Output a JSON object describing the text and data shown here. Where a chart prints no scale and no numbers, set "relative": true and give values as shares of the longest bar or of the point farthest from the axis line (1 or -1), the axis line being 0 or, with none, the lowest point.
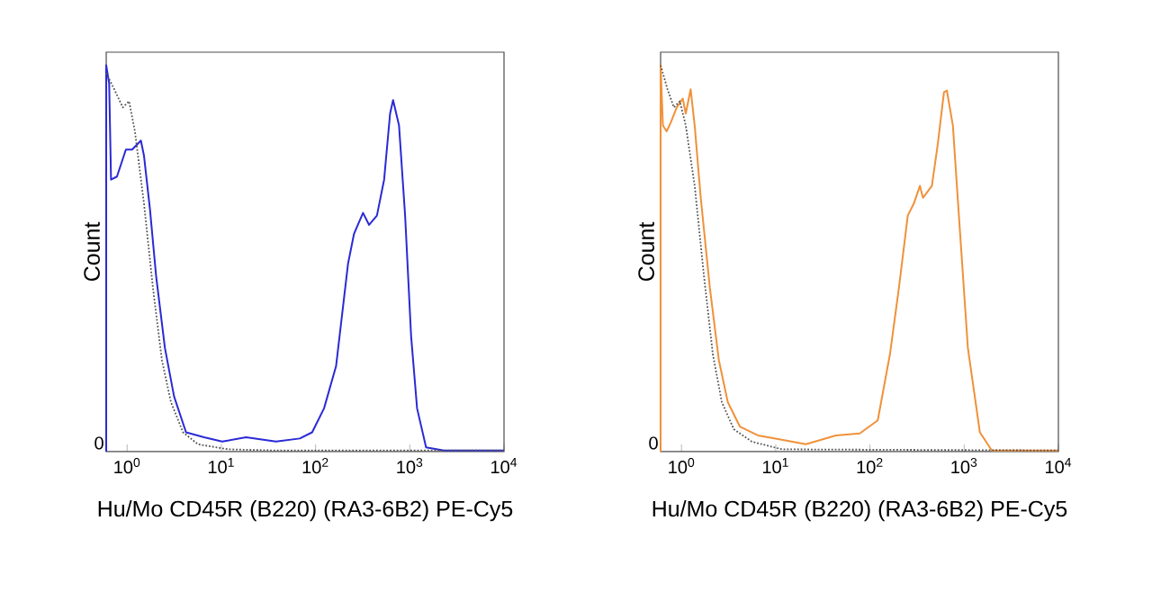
{
  "chart_data": [
    {
      "type": "line",
      "relative": true,
      "log": "x",
      "marker": "none",
      "ylabel": "Count",
      "xlabel": "Hu/Mo CD45R (B220) (RA3-6B2) PE-Cy5",
      "xlim": [
        0.6,
        10000
      ],
      "xticks": [
        {
          "value": 1,
          "label": "10$^{0}$"
        },
        {
          "value": 10,
          "label": "10$^{1}$"
        },
        {
          "value": 100,
          "label": "10$^{2}$"
        },
        {
          "value": 1000,
          "label": "10$^{3}$"
        },
        {
          "value": 10000,
          "label": "10$^{4}$"
        }
      ],
      "annotations": [
        {
          "text": "0",
          "y": 0
        }
      ],
      "series": [
        {
          "color": "#2a2ad6",
          "line_style": "solid",
          "x": [
            0.6,
            0.6,
            0.645,
            0.675,
            0.78,
            0.97,
            1.13,
            1.4,
            1.51,
            1.75,
            2.03,
            2.52,
            3.15,
            4.22,
            6.55,
            10.2,
            18.3,
            38,
            68,
            92,
            123,
            165,
            221,
            256,
            319,
            370,
            448,
            534,
            618,
            665,
            769,
            892,
            1033,
            1195,
            1489,
            2312,
            10000
          ],
          "values": [
            0,
            1.0,
            0.953,
            0.704,
            0.712,
            0.782,
            0.782,
            0.805,
            0.766,
            0.626,
            0.455,
            0.268,
            0.143,
            0.05,
            0.037,
            0.026,
            0.037,
            0.026,
            0.034,
            0.05,
            0.112,
            0.221,
            0.486,
            0.564,
            0.618,
            0.587,
            0.611,
            0.704,
            0.875,
            0.91,
            0.844,
            0.611,
            0.299,
            0.112,
            0.011,
            0.003,
            0.003
          ]
        },
        {
          "color": "#555555",
          "line_style": "dotted",
          "x": [
            0.6,
            0.73,
            0.9,
            1.05,
            1.21,
            1.51,
            1.88,
            2.34,
            2.92,
            3.92,
            5.66,
            11.8,
            38,
            10000
          ],
          "values": [
            0.98,
            0.938,
            0.891,
            0.907,
            0.829,
            0.642,
            0.424,
            0.237,
            0.128,
            0.05,
            0.019,
            0.006,
            0.003,
            0.003
          ]
        }
      ]
    },
    {
      "type": "line",
      "relative": true,
      "log": "x",
      "marker": "none",
      "ylabel": "Count",
      "xlabel": "Hu/Mo CD45R (B220) (RA3-6B2) PE-Cy5",
      "xlim": [
        0.6,
        10000
      ],
      "xticks": [
        {
          "value": 1,
          "label": "10$^{0}$"
        },
        {
          "value": 10,
          "label": "10$^{1}$"
        },
        {
          "value": 100,
          "label": "10$^{2}$"
        },
        {
          "value": 1000,
          "label": "10$^{3}$"
        },
        {
          "value": 10000,
          "label": "10$^{4}$"
        }
      ],
      "annotations": [
        {
          "text": "0",
          "y": 0
        }
      ],
      "series": [
        {
          "color": "#f0913a",
          "line_style": "solid",
          "x": [
            0.6,
            0.6,
            0.635,
            0.695,
            0.77,
            0.89,
            1.03,
            1.11,
            1.25,
            1.38,
            1.6,
            2.0,
            2.49,
            3.1,
            4.16,
            6.46,
            11.6,
            20.9,
            43.5,
            78,
            121,
            163,
            203,
            252,
            292,
            339,
            365,
            454,
            526,
            610,
            655,
            759,
            879,
            1095,
            1468,
            1968,
            10000
          ],
          "values": [
            0,
            1.0,
            0.844,
            0.829,
            0.852,
            0.891,
            0.914,
            0.875,
            0.938,
            0.844,
            0.657,
            0.424,
            0.237,
            0.128,
            0.065,
            0.042,
            0.031,
            0.019,
            0.042,
            0.047,
            0.081,
            0.252,
            0.424,
            0.611,
            0.642,
            0.688,
            0.657,
            0.688,
            0.798,
            0.93,
            0.935,
            0.844,
            0.611,
            0.268,
            0.05,
            0.003,
            0.003
          ]
        },
        {
          "color": "#555555",
          "line_style": "dotted",
          "x": [
            0.6,
            0.71,
            0.83,
            0.96,
            1.11,
            1.38,
            1.73,
            2.15,
            2.68,
            3.59,
            5.57,
            11.6,
            10000
          ],
          "values": [
            1.0,
            0.938,
            0.891,
            0.907,
            0.844,
            0.688,
            0.455,
            0.252,
            0.128,
            0.058,
            0.026,
            0.006,
            0.003
          ]
        }
      ]
    }
  ]
}
